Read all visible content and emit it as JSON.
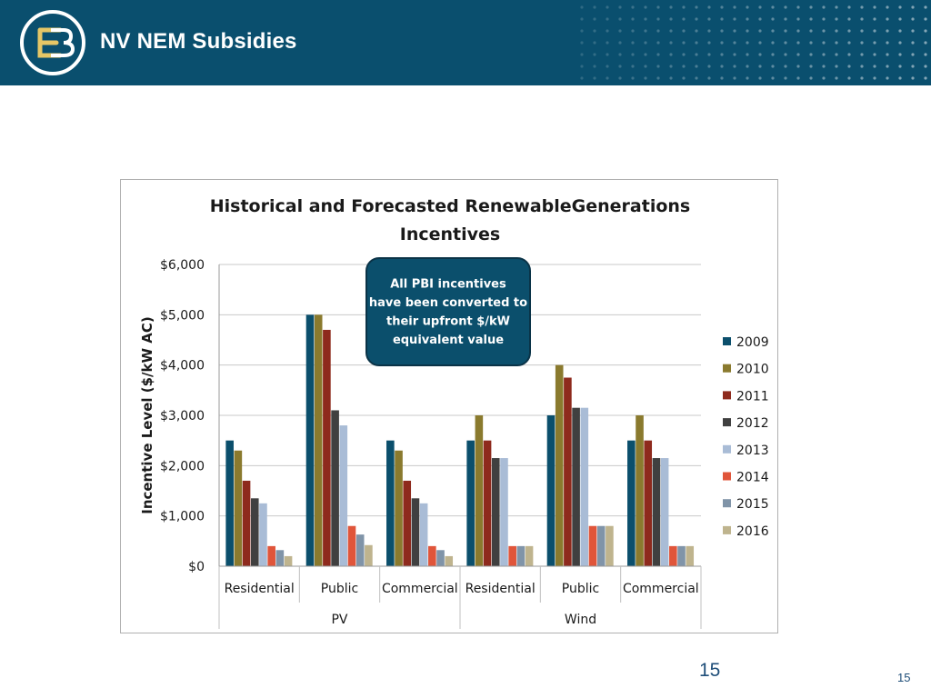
{
  "slide": {
    "title": "NV NEM Subsidies",
    "page_number_center": "15",
    "page_number_corner": "15"
  },
  "colors": {
    "header_bg": "#0a4f6e",
    "callout_bg": "#0b4f6c"
  },
  "icons": {
    "logo": "eb-logo-icon"
  },
  "chart_data": {
    "type": "bar",
    "title_lines": [
      "Historical and Forecasted RenewableGenerations",
      "Incentives"
    ],
    "ylabel": "Incentive Level ($/kW AC)",
    "ylim": [
      0,
      6000
    ],
    "yticks": [
      0,
      1000,
      2000,
      3000,
      4000,
      5000,
      6000
    ],
    "ytick_labels": [
      "$0",
      "$1,000",
      "$2,000",
      "$3,000",
      "$4,000",
      "$5,000",
      "$6,000"
    ],
    "categories": [
      "Residential",
      "Public",
      "Commercial",
      "Residential",
      "Public",
      "Commercial"
    ],
    "groups": [
      {
        "label": "PV",
        "span": [
          0,
          2
        ]
      },
      {
        "label": "Wind",
        "span": [
          3,
          5
        ]
      }
    ],
    "grid": "horizontal",
    "legend_position": "right",
    "annotation": "All PBI incentives have been converted to their upfront $/kW equivalent value",
    "series": [
      {
        "name": "2009",
        "color": "#0b4f6c",
        "values": [
          2500,
          5000,
          2500,
          2500,
          3000,
          2500
        ]
      },
      {
        "name": "2010",
        "color": "#8a7a2e",
        "values": [
          2300,
          5000,
          2300,
          3000,
          4000,
          3000
        ]
      },
      {
        "name": "2011",
        "color": "#8e2a1d",
        "values": [
          1700,
          4700,
          1700,
          2500,
          3750,
          2500
        ]
      },
      {
        "name": "2012",
        "color": "#404040",
        "values": [
          1350,
          3100,
          1350,
          2150,
          3150,
          2150
        ]
      },
      {
        "name": "2013",
        "color": "#a9bcd6",
        "values": [
          1250,
          2800,
          1250,
          2150,
          3150,
          2150
        ]
      },
      {
        "name": "2014",
        "color": "#e0553a",
        "values": [
          400,
          800,
          400,
          400,
          800,
          400
        ]
      },
      {
        "name": "2015",
        "color": "#8094a8",
        "values": [
          320,
          630,
          320,
          400,
          800,
          400
        ]
      },
      {
        "name": "2016",
        "color": "#bfb48e",
        "values": [
          200,
          420,
          200,
          400,
          800,
          400
        ]
      }
    ]
  }
}
